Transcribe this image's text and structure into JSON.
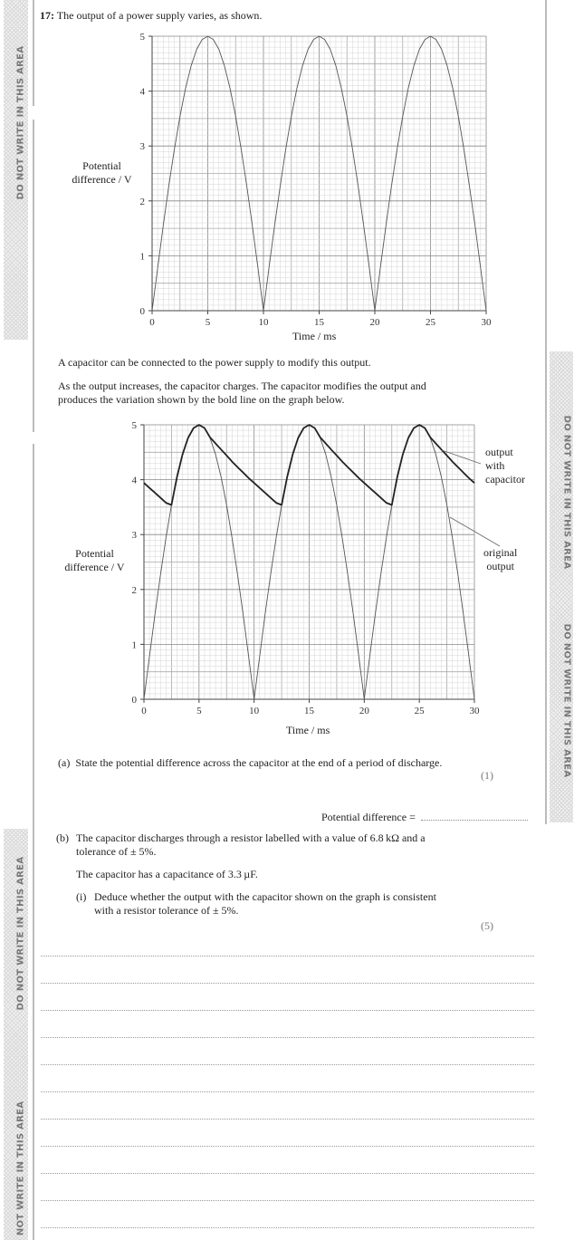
{
  "margin_warning": "DO NOT WRITE IN THIS AREA",
  "question": {
    "number": "17:",
    "intro": "The output of a power supply varies, as shown.",
    "para1": "A capacitor can be connected to the power supply to modify this output.",
    "para2_line1": "As the output increases, the capacitor charges. The capacitor modifies the output and",
    "para2_line2": "produces the variation shown by the bold line on the graph below.",
    "part_a": {
      "label": "(a)",
      "text": "State the potential difference across the capacitor at the end of a period of discharge.",
      "marks": "(1)",
      "answer_prompt": "Potential difference ="
    },
    "part_b": {
      "label": "(b)",
      "line1": "The capacitor discharges through a resistor labelled with a value of 6.8 kΩ and a",
      "line2": "tolerance of ± 5%.",
      "line3": "The capacitor has a capacitance of 3.3 µF.",
      "sub_i": {
        "label": "(i)",
        "line1": "Deduce whether the output with the capacitor shown on the graph is consistent",
        "line2": "with a resistor tolerance of ± 5%.",
        "marks": "(5)"
      },
      "answer_lines": 11
    }
  },
  "chart_data": [
    {
      "type": "line",
      "xlabel": "Time / ms",
      "ylabel_line1": "Potential",
      "ylabel_line2": "difference / V",
      "xlim": [
        0,
        30
      ],
      "ylim": [
        0,
        5
      ],
      "xticks": [
        0,
        5,
        10,
        15,
        20,
        25,
        30
      ],
      "yticks": [
        0,
        1,
        2,
        3,
        4,
        5
      ],
      "grid": true,
      "x": [
        0,
        0.5,
        1,
        1.5,
        2,
        2.5,
        3,
        3.5,
        4,
        4.5,
        5,
        5.5,
        6,
        6.5,
        7,
        7.5,
        8,
        8.5,
        9,
        9.5,
        10,
        10.5,
        11,
        11.5,
        12,
        12.5,
        13,
        13.5,
        14,
        14.5,
        15,
        15.5,
        16,
        16.5,
        17,
        17.5,
        18,
        18.5,
        19,
        19.5,
        20,
        20.5,
        21,
        21.5,
        22,
        22.5,
        23,
        23.5,
        24,
        24.5,
        25,
        25.5,
        26,
        26.5,
        27,
        27.5,
        28,
        28.5,
        29,
        29.5,
        30
      ],
      "series": [
        {
          "style": "thin",
          "values": [
            0,
            0.78,
            1.55,
            2.27,
            2.94,
            3.54,
            4.05,
            4.46,
            4.76,
            4.94,
            5,
            4.94,
            4.76,
            4.46,
            4.05,
            3.54,
            2.94,
            2.27,
            1.55,
            0.78,
            0,
            0.78,
            1.55,
            2.27,
            2.94,
            3.54,
            4.05,
            4.46,
            4.76,
            4.94,
            5,
            4.94,
            4.76,
            4.46,
            4.05,
            3.54,
            2.94,
            2.27,
            1.55,
            0.78,
            0,
            0.78,
            1.55,
            2.27,
            2.94,
            3.54,
            4.05,
            4.46,
            4.76,
            4.94,
            5,
            4.94,
            4.76,
            4.46,
            4.05,
            3.54,
            2.94,
            2.27,
            1.55,
            0.78,
            0
          ]
        }
      ]
    },
    {
      "type": "line",
      "xlabel": "Time / ms",
      "ylabel_line1": "Potential",
      "ylabel_line2": "difference / V",
      "xlim": [
        0,
        30
      ],
      "ylim": [
        0,
        5
      ],
      "xticks": [
        0,
        5,
        10,
        15,
        20,
        25,
        30
      ],
      "yticks": [
        0,
        1,
        2,
        3,
        4,
        5
      ],
      "grid": true,
      "x": [
        0,
        0.5,
        1,
        1.5,
        2,
        2.5,
        3,
        3.5,
        4,
        4.5,
        5,
        5.5,
        6,
        6.5,
        7,
        7.5,
        8,
        8.5,
        9,
        9.5,
        10,
        10.5,
        11,
        11.5,
        12,
        12.5,
        13,
        13.5,
        14,
        14.5,
        15,
        15.5,
        16,
        16.5,
        17,
        17.5,
        18,
        18.5,
        19,
        19.5,
        20,
        20.5,
        21,
        21.5,
        22,
        22.5,
        23,
        23.5,
        24,
        24.5,
        25,
        25.5,
        26,
        26.5,
        27,
        27.5,
        28,
        28.5,
        29,
        29.5,
        30
      ],
      "series": [
        {
          "name": "original output",
          "style": "thin",
          "values": [
            0,
            0.78,
            1.55,
            2.27,
            2.94,
            3.54,
            4.05,
            4.46,
            4.76,
            4.94,
            5,
            4.94,
            4.76,
            4.46,
            4.05,
            3.54,
            2.94,
            2.27,
            1.55,
            0.78,
            0,
            0.78,
            1.55,
            2.27,
            2.94,
            3.54,
            4.05,
            4.46,
            4.76,
            4.94,
            5,
            4.94,
            4.76,
            4.46,
            4.05,
            3.54,
            2.94,
            2.27,
            1.55,
            0.78,
            0,
            0.78,
            1.55,
            2.27,
            2.94,
            3.54,
            4.05,
            4.46,
            4.76,
            4.94,
            5,
            4.94,
            4.76,
            4.46,
            4.05,
            3.54,
            2.94,
            2.27,
            1.55,
            0.78,
            0
          ]
        },
        {
          "name": "output with capacitor",
          "style": "bold",
          "values": [
            3.94,
            3.85,
            3.76,
            3.67,
            3.58,
            3.54,
            4.05,
            4.46,
            4.76,
            4.94,
            5,
            4.94,
            4.77,
            4.66,
            4.55,
            4.44,
            4.33,
            4.23,
            4.13,
            4.03,
            3.94,
            3.85,
            3.76,
            3.67,
            3.58,
            3.54,
            4.05,
            4.46,
            4.76,
            4.94,
            5,
            4.94,
            4.77,
            4.66,
            4.55,
            4.44,
            4.33,
            4.23,
            4.13,
            4.03,
            3.94,
            3.85,
            3.76,
            3.67,
            3.58,
            3.54,
            4.05,
            4.46,
            4.76,
            4.94,
            5,
            4.94,
            4.77,
            4.66,
            4.55,
            4.44,
            4.33,
            4.23,
            4.13,
            4.03,
            3.94
          ]
        }
      ],
      "annotations": [
        {
          "line1": "output",
          "line2": "with",
          "line3": "capacitor"
        },
        {
          "line1": "original",
          "line2": "output"
        }
      ]
    }
  ]
}
